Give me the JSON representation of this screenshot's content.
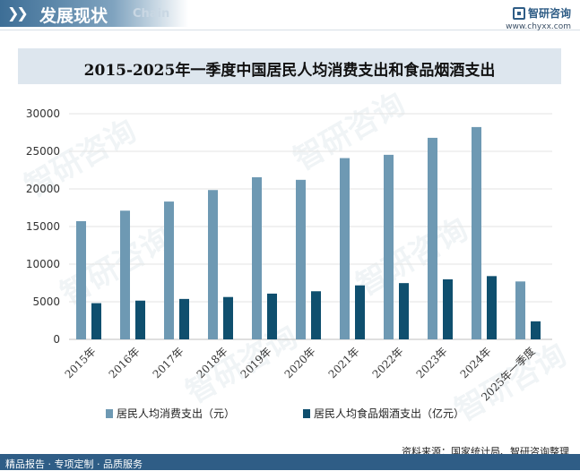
{
  "header": {
    "title": "发展现状",
    "subtitle": "Chain"
  },
  "brand": {
    "name": "智研咨询",
    "url": "www.chyxx.com"
  },
  "footer": {
    "services": "精品报告 · 专项定制 · 品质服务",
    "source": "资料来源：国家统计局、智研咨询整理"
  },
  "watermark": "智研咨询",
  "chart_data": {
    "type": "bar",
    "title": "2015-2025年一季度中国居民人均消费支出和食品烟酒支出",
    "categories": [
      "2015年",
      "2016年",
      "2017年",
      "2018年",
      "2019年",
      "2020年",
      "2021年",
      "2022年",
      "2023年",
      "2024年",
      "2025年一季度"
    ],
    "series": [
      {
        "name": "居民人均消费支出（元）",
        "color": "#6e99b3",
        "values": [
          15712,
          17111,
          18322,
          19853,
          21559,
          21210,
          24100,
          24538,
          26796,
          28227,
          7700
        ]
      },
      {
        "name": "居民人均食品烟酒支出（亿元）",
        "color": "#0f4f6e",
        "values": [
          4814,
          5151,
          5374,
          5631,
          6084,
          6397,
          7178,
          7481,
          7983,
          8411,
          2400
        ]
      }
    ],
    "ylim": [
      0,
      30000
    ],
    "yticks": [
      0,
      5000,
      10000,
      15000,
      20000,
      25000,
      30000
    ],
    "grid": true,
    "legend": "bottom"
  }
}
